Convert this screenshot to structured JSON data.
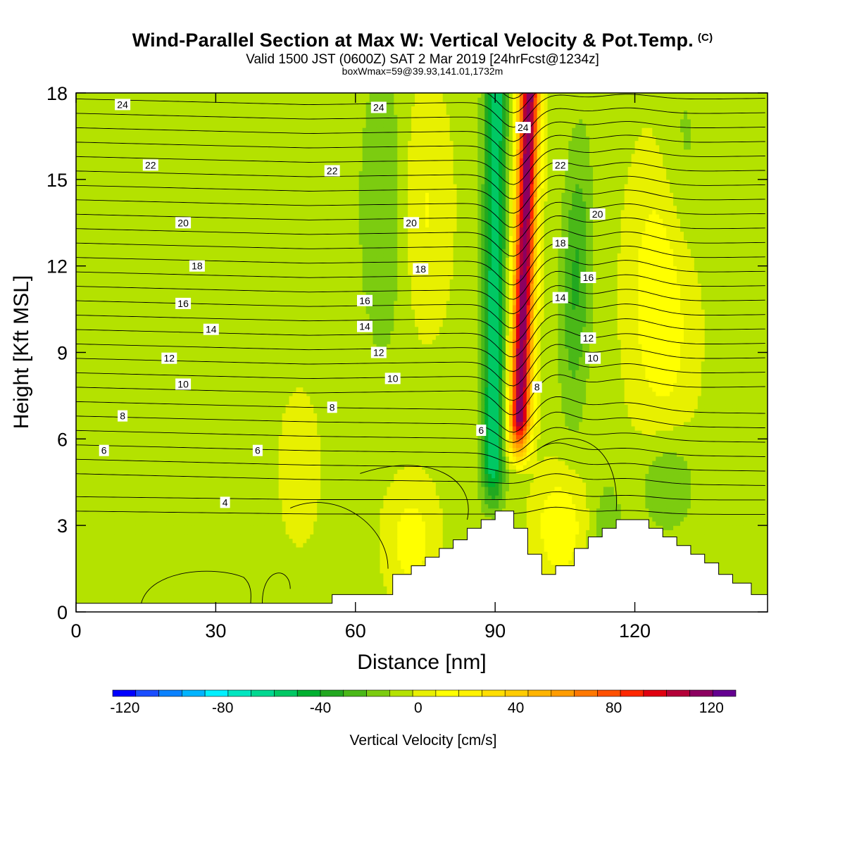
{
  "title": {
    "main": "Wind-Parallel Section at Max W: Vertical Velocity & Pot.Temp.",
    "copyright": "(C)",
    "valid": "Valid 1500 JST (0600Z) SAT 2 Mar 2019 [24hrFcst@1234z]",
    "box": "boxWmax=59@39.93,141.01,1732m"
  },
  "chart_data": {
    "type": "heatmap",
    "xlabel": "Distance [nm]",
    "ylabel": "Height [Kft MSL]",
    "xlim": [
      0,
      148.5
    ],
    "ylim": [
      0,
      18
    ],
    "xticks": [
      "0",
      "30",
      "60",
      "90",
      "120"
    ],
    "yticks": [
      "0",
      "3",
      "6",
      "9",
      "12",
      "15",
      "18"
    ],
    "colorbar": {
      "label": "Vertical Velocity [cm/s]",
      "range": [
        -125,
        130
      ],
      "ticks": [
        "-120",
        "-80",
        "-40",
        "0",
        "40",
        "80",
        "120"
      ],
      "colors": [
        "#0000ff",
        "#1a4dff",
        "#0a82ff",
        "#00b4ff",
        "#00f0ff",
        "#00e6c0",
        "#00d890",
        "#00c864",
        "#00b030",
        "#22a820",
        "#4ab818",
        "#7ccc10",
        "#b4e200",
        "#e8f000",
        "#ffff00",
        "#fff200",
        "#ffde00",
        "#ffcc00",
        "#ffb400",
        "#ff9c00",
        "#ff7800",
        "#ff5000",
        "#ff2800",
        "#e00010",
        "#b40038",
        "#8c0060",
        "#640090"
      ]
    },
    "isentropes": [
      {
        "label": "4",
        "x": 32,
        "y": 3.8
      },
      {
        "label": "6",
        "x": 6,
        "y": 5.6
      },
      {
        "label": "6",
        "x": 39,
        "y": 5.6
      },
      {
        "label": "6",
        "x": 87,
        "y": 6.3
      },
      {
        "label": "8",
        "x": 10,
        "y": 6.8
      },
      {
        "label": "8",
        "x": 55,
        "y": 7.1
      },
      {
        "label": "8",
        "x": 99,
        "y": 7.8
      },
      {
        "label": "10",
        "x": 23,
        "y": 7.9
      },
      {
        "label": "10",
        "x": 68,
        "y": 8.1
      },
      {
        "label": "10",
        "x": 111,
        "y": 8.8
      },
      {
        "label": "12",
        "x": 20,
        "y": 8.8
      },
      {
        "label": "12",
        "x": 65,
        "y": 9.0
      },
      {
        "label": "12",
        "x": 110,
        "y": 9.5
      },
      {
        "label": "14",
        "x": 29,
        "y": 9.8
      },
      {
        "label": "14",
        "x": 62,
        "y": 9.9
      },
      {
        "label": "14",
        "x": 104,
        "y": 10.9
      },
      {
        "label": "16",
        "x": 23,
        "y": 10.7
      },
      {
        "label": "16",
        "x": 62,
        "y": 10.8
      },
      {
        "label": "16",
        "x": 110,
        "y": 11.6
      },
      {
        "label": "18",
        "x": 26,
        "y": 12.0
      },
      {
        "label": "18",
        "x": 74,
        "y": 11.9
      },
      {
        "label": "18",
        "x": 104,
        "y": 12.8
      },
      {
        "label": "20",
        "x": 23,
        "y": 13.5
      },
      {
        "label": "20",
        "x": 72,
        "y": 13.5
      },
      {
        "label": "20",
        "x": 112,
        "y": 13.8
      },
      {
        "label": "22",
        "x": 16,
        "y": 15.5
      },
      {
        "label": "22",
        "x": 55,
        "y": 15.3
      },
      {
        "label": "22",
        "x": 104,
        "y": 15.5
      },
      {
        "label": "24",
        "x": 10,
        "y": 17.6
      },
      {
        "label": "24",
        "x": 65,
        "y": 17.5
      },
      {
        "label": "24",
        "x": 96,
        "y": 16.8
      }
    ],
    "terrain": [
      [
        0,
        0.3
      ],
      [
        55,
        0.3
      ],
      [
        55,
        0.6
      ],
      [
        68,
        0.6
      ],
      [
        68,
        1.3
      ],
      [
        72,
        1.3
      ],
      [
        72,
        1.6
      ],
      [
        75,
        1.6
      ],
      [
        75,
        1.9
      ],
      [
        78,
        1.9
      ],
      [
        78,
        2.2
      ],
      [
        81,
        2.2
      ],
      [
        81,
        2.5
      ],
      [
        84,
        2.5
      ],
      [
        84,
        2.9
      ],
      [
        87,
        2.9
      ],
      [
        87,
        3.2
      ],
      [
        90,
        3.2
      ],
      [
        90,
        3.5
      ],
      [
        94,
        3.5
      ],
      [
        94,
        2.9
      ],
      [
        97,
        2.9
      ],
      [
        97,
        2.0
      ],
      [
        100,
        2.0
      ],
      [
        100,
        1.3
      ],
      [
        103,
        1.3
      ],
      [
        103,
        1.6
      ],
      [
        107,
        1.6
      ],
      [
        107,
        2.2
      ],
      [
        110,
        2.2
      ],
      [
        110,
        2.6
      ],
      [
        113,
        2.6
      ],
      [
        113,
        2.9
      ],
      [
        116,
        2.9
      ],
      [
        116,
        3.2
      ],
      [
        123,
        3.2
      ],
      [
        123,
        2.9
      ],
      [
        126,
        2.9
      ],
      [
        126,
        2.6
      ],
      [
        129,
        2.6
      ],
      [
        129,
        2.3
      ],
      [
        132,
        2.3
      ],
      [
        132,
        2.0
      ],
      [
        135,
        2.0
      ],
      [
        135,
        1.7
      ],
      [
        138,
        1.7
      ],
      [
        138,
        1.3
      ],
      [
        141,
        1.3
      ],
      [
        141,
        1.0
      ],
      [
        145,
        1.0
      ],
      [
        145,
        0.6
      ],
      [
        148.5,
        0.6
      ]
    ]
  }
}
